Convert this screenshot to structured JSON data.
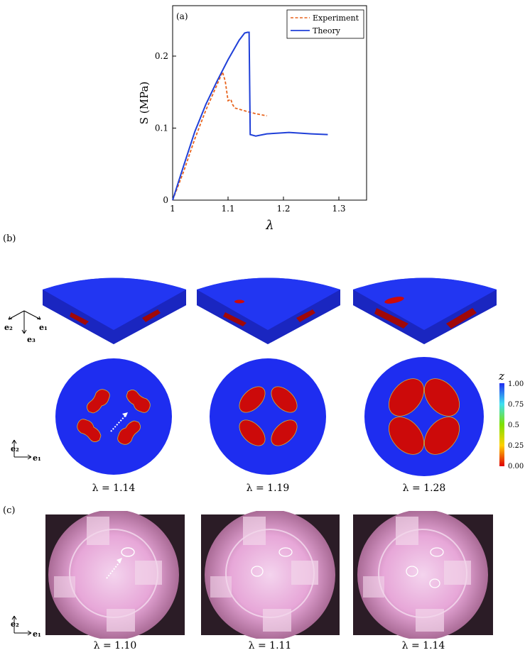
{
  "panel_a": {
    "label": "(a)",
    "chart_data": {
      "type": "line",
      "xlabel": "λ",
      "ylabel": "S (MPa)",
      "xlim": [
        1.0,
        1.35
      ],
      "ylim": [
        0.0,
        0.27
      ],
      "xticks": [
        "1",
        "1.1",
        "1.2",
        "1.3"
      ],
      "yticks": [
        "0",
        "0.1",
        "0.2"
      ],
      "legend_position": "top-right",
      "series": [
        {
          "name": "Experiment",
          "color": "#e8641e",
          "style": "dashed",
          "x": [
            1.0,
            1.02,
            1.04,
            1.06,
            1.08,
            1.09,
            1.095,
            1.1,
            1.105,
            1.108,
            1.112,
            1.13,
            1.15,
            1.17
          ],
          "y": [
            0.0,
            0.04,
            0.085,
            0.125,
            0.16,
            0.178,
            0.165,
            0.138,
            0.14,
            0.133,
            0.128,
            0.124,
            0.12,
            0.117
          ]
        },
        {
          "name": "Theory",
          "color": "#2040d8",
          "style": "solid",
          "x": [
            1.0,
            1.02,
            1.04,
            1.06,
            1.08,
            1.1,
            1.12,
            1.13,
            1.135,
            1.138,
            1.14,
            1.15,
            1.17,
            1.19,
            1.21,
            1.23,
            1.25,
            1.28
          ],
          "y": [
            0.0,
            0.048,
            0.095,
            0.133,
            0.165,
            0.195,
            0.222,
            0.232,
            0.233,
            0.233,
            0.091,
            0.089,
            0.092,
            0.093,
            0.094,
            0.093,
            0.092,
            0.091
          ]
        }
      ]
    }
  },
  "panel_b": {
    "label": "(b)",
    "axes3d": {
      "e1": "e₁",
      "e2": "e₂",
      "e3": "e₃"
    },
    "axes2d": {
      "e1": "e₁",
      "e2": "e₂"
    },
    "colorbar": {
      "title": "z",
      "ticks": [
        "1.00",
        "0.75",
        "0.5",
        "0.25",
        "0.00"
      ],
      "colors": [
        "#1e2df0",
        "#3fe0f0",
        "#7fe000",
        "#ffd000",
        "#e00000"
      ]
    },
    "captions": [
      "λ = 1.14",
      "λ = 1.19",
      "λ = 1.28"
    ],
    "colors": {
      "disk": "#1e2df0",
      "cavity": "#cc0a0a"
    }
  },
  "panel_c": {
    "label": "(c)",
    "axes2d": {
      "e1": "e₁",
      "e2": "e₂"
    },
    "captions": [
      "λ = 1.10",
      "λ = 1.11",
      "λ = 1.14"
    ]
  }
}
